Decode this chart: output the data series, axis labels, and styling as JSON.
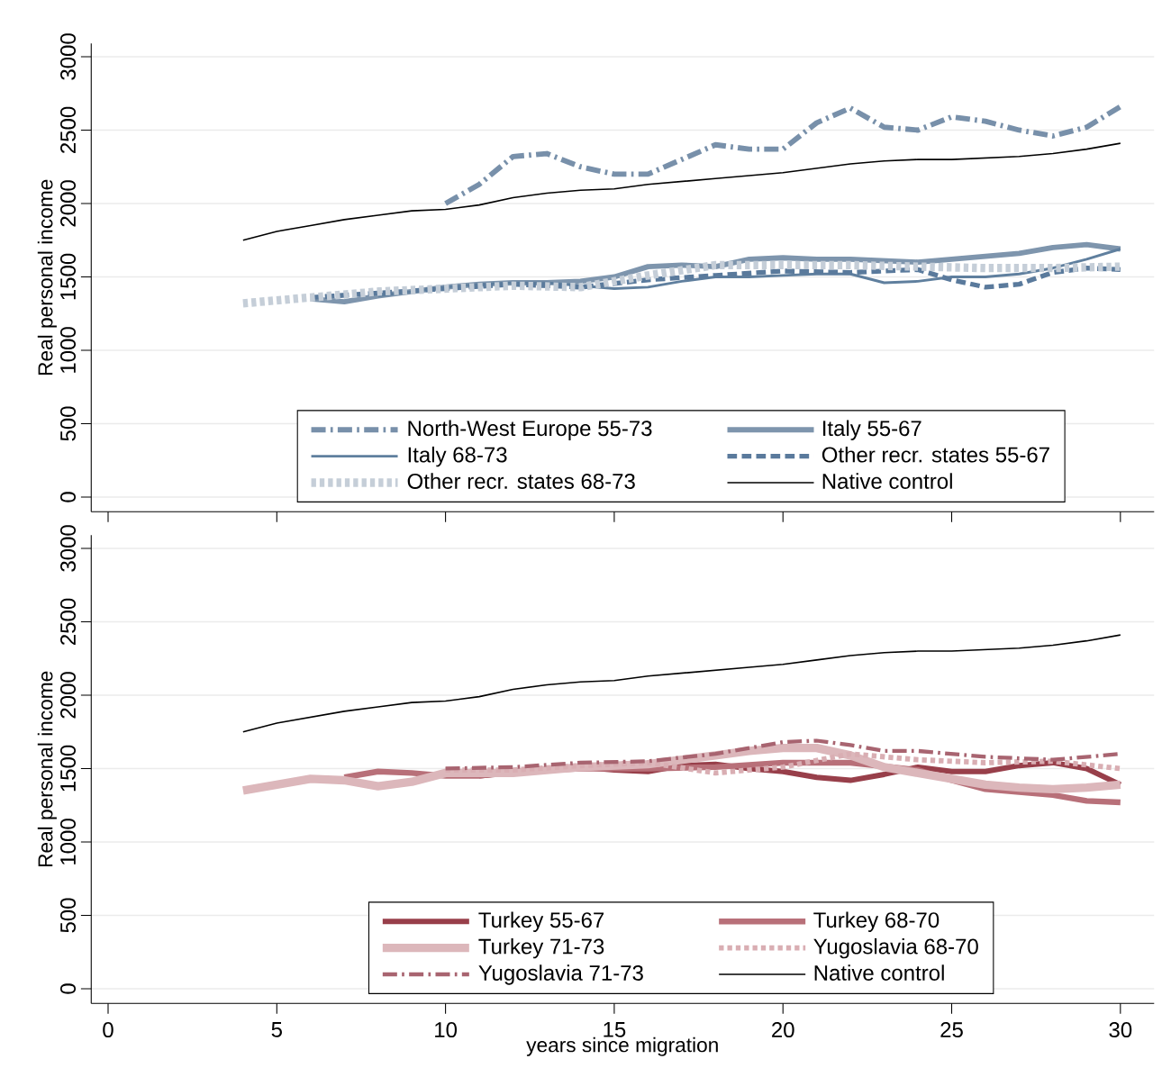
{
  "chart_data": [
    {
      "type": "line",
      "ylabel": "Real personal income",
      "xlim": [
        -0.5,
        31
      ],
      "xticks": [
        0,
        5,
        10,
        15,
        20,
        25,
        30
      ],
      "ylim": [
        -100,
        3090
      ],
      "yticks": [
        0,
        500,
        1000,
        1500,
        2000,
        2500,
        3000
      ],
      "grid": "y",
      "legend": "bottom",
      "tick_labels": "y",
      "marker": "none",
      "series": [
        {
          "name": "North-West Europe 55-73",
          "color": "#7890aa",
          "line_style": "dashdot",
          "x": [
            10,
            11,
            12,
            13,
            14,
            15,
            16,
            17,
            18,
            19,
            20,
            21,
            22,
            23,
            24,
            25,
            26,
            27,
            28,
            29,
            30
          ],
          "values": [
            2000,
            2130,
            2320,
            2340,
            2250,
            2200,
            2200,
            2300,
            2400,
            2370,
            2370,
            2550,
            2650,
            2520,
            2500,
            2590,
            2560,
            2500,
            2460,
            2520,
            2660
          ]
        },
        {
          "name": "Italy 55-67",
          "color": "#7e95ad",
          "line_style": "solid",
          "x": [
            6,
            7,
            8,
            9,
            10,
            11,
            12,
            13,
            14,
            15,
            16,
            17,
            18,
            19,
            20,
            21,
            22,
            23,
            24,
            25,
            26,
            27,
            28,
            29,
            30
          ],
          "values": [
            1350,
            1330,
            1370,
            1400,
            1430,
            1450,
            1460,
            1460,
            1470,
            1500,
            1570,
            1580,
            1570,
            1620,
            1630,
            1620,
            1620,
            1610,
            1600,
            1620,
            1640,
            1660,
            1700,
            1720,
            1690
          ]
        },
        {
          "name": "Italy 68-73",
          "color": "#5f7f9e",
          "line_style": "solid",
          "x": [
            8,
            9,
            10,
            11,
            12,
            13,
            14,
            15,
            16,
            17,
            18,
            19,
            20,
            21,
            22,
            23,
            24,
            25,
            26,
            27,
            28,
            29,
            30
          ],
          "values": [
            1370,
            1400,
            1430,
            1450,
            1460,
            1460,
            1440,
            1420,
            1430,
            1470,
            1500,
            1500,
            1510,
            1520,
            1520,
            1460,
            1470,
            1500,
            1500,
            1520,
            1560,
            1620,
            1690
          ]
        },
        {
          "name": "Other recr. states 55-67",
          "color": "#5a7a9c",
          "line_style": "dashed",
          "x": [
            6,
            8,
            10,
            12,
            14,
            16,
            18,
            20,
            22,
            24,
            25,
            26,
            27,
            28,
            29,
            30
          ],
          "values": [
            1360,
            1390,
            1420,
            1450,
            1430,
            1480,
            1510,
            1540,
            1530,
            1550,
            1480,
            1430,
            1450,
            1530,
            1560,
            1550
          ]
        },
        {
          "name": "Other recr. states 68-73",
          "color": "#c5ced8",
          "line_style": "dotted",
          "x": [
            4,
            6,
            8,
            10,
            12,
            14,
            16,
            18,
            20,
            22,
            24,
            26,
            28,
            30
          ],
          "values": [
            1320,
            1360,
            1400,
            1420,
            1440,
            1430,
            1510,
            1580,
            1580,
            1580,
            1570,
            1560,
            1560,
            1570
          ]
        },
        {
          "name": "Native control",
          "color": "#000000",
          "line_style": "solid",
          "x": [
            4,
            5,
            6,
            7,
            8,
            9,
            10,
            11,
            12,
            13,
            14,
            15,
            16,
            17,
            18,
            19,
            20,
            21,
            22,
            23,
            24,
            25,
            26,
            27,
            28,
            29,
            30
          ],
          "values": [
            1750,
            1810,
            1850,
            1890,
            1920,
            1950,
            1960,
            1990,
            2040,
            2070,
            2090,
            2100,
            2130,
            2150,
            2170,
            2190,
            2210,
            2240,
            2270,
            2290,
            2300,
            2300,
            2310,
            2320,
            2340,
            2370,
            2410
          ]
        }
      ]
    },
    {
      "type": "line",
      "ylabel": "Real personal income",
      "xlabel": "years since migration",
      "xlim": [
        -0.5,
        31
      ],
      "xticks": [
        0,
        5,
        10,
        15,
        20,
        25,
        30
      ],
      "ylim": [
        -100,
        3090
      ],
      "yticks": [
        0,
        500,
        1000,
        1500,
        2000,
        2500,
        3000
      ],
      "grid": "y",
      "legend": "bottom",
      "marker": "none",
      "series": [
        {
          "name": "Turkey 55-67",
          "color": "#983f4a",
          "line_style": "solid",
          "x": [
            11,
            12,
            13,
            14,
            15,
            16,
            17,
            18,
            19,
            20,
            21,
            22,
            23,
            24,
            25,
            26,
            27,
            28,
            29,
            30
          ],
          "values": [
            1450,
            1470,
            1490,
            1510,
            1490,
            1480,
            1520,
            1530,
            1500,
            1480,
            1440,
            1420,
            1460,
            1510,
            1480,
            1480,
            1520,
            1540,
            1500,
            1390
          ]
        },
        {
          "name": "Turkey 68-70",
          "color": "#b87079",
          "line_style": "solid",
          "x": [
            7,
            8,
            9,
            10,
            11,
            12,
            14,
            16,
            18,
            20,
            22,
            24,
            25,
            26,
            28,
            29,
            30
          ],
          "values": [
            1440,
            1480,
            1470,
            1450,
            1450,
            1480,
            1500,
            1500,
            1510,
            1540,
            1540,
            1490,
            1420,
            1360,
            1320,
            1280,
            1270
          ]
        },
        {
          "name": "Turkey 71-73",
          "color": "#dcb7bb",
          "line_style": "solid",
          "x": [
            4,
            5,
            6,
            7,
            8,
            9,
            10,
            12,
            14,
            16,
            18,
            19,
            20,
            21,
            22,
            23,
            24,
            25,
            26,
            27,
            28,
            29,
            30
          ],
          "values": [
            1350,
            1390,
            1430,
            1420,
            1380,
            1410,
            1470,
            1470,
            1510,
            1530,
            1590,
            1620,
            1640,
            1640,
            1590,
            1510,
            1470,
            1430,
            1390,
            1370,
            1360,
            1370,
            1390
          ]
        },
        {
          "name": "Yugoslavia 68-70",
          "color": "#d9aeb3",
          "line_style": "dotted",
          "x": [
            10,
            12,
            14,
            16,
            18,
            20,
            22,
            24,
            26,
            28,
            30
          ],
          "values": [
            1490,
            1490,
            1520,
            1540,
            1470,
            1510,
            1600,
            1560,
            1540,
            1550,
            1500
          ]
        },
        {
          "name": "Yugoslavia 71-73",
          "color": "#a86470",
          "line_style": "dashdot",
          "x": [
            10,
            12,
            14,
            16,
            18,
            20,
            21,
            22,
            23,
            24,
            26,
            28,
            30
          ],
          "values": [
            1500,
            1510,
            1540,
            1550,
            1600,
            1680,
            1690,
            1660,
            1620,
            1620,
            1580,
            1560,
            1600
          ]
        },
        {
          "name": "Native control",
          "color": "#000000",
          "line_style": "solid",
          "x": [
            4,
            5,
            6,
            7,
            8,
            9,
            10,
            11,
            12,
            13,
            14,
            15,
            16,
            17,
            18,
            19,
            20,
            21,
            22,
            23,
            24,
            25,
            26,
            27,
            28,
            29,
            30
          ],
          "values": [
            1750,
            1810,
            1850,
            1890,
            1920,
            1950,
            1960,
            1990,
            2040,
            2070,
            2090,
            2100,
            2130,
            2150,
            2170,
            2190,
            2210,
            2240,
            2270,
            2290,
            2300,
            2300,
            2310,
            2320,
            2340,
            2370,
            2410
          ]
        }
      ]
    }
  ]
}
